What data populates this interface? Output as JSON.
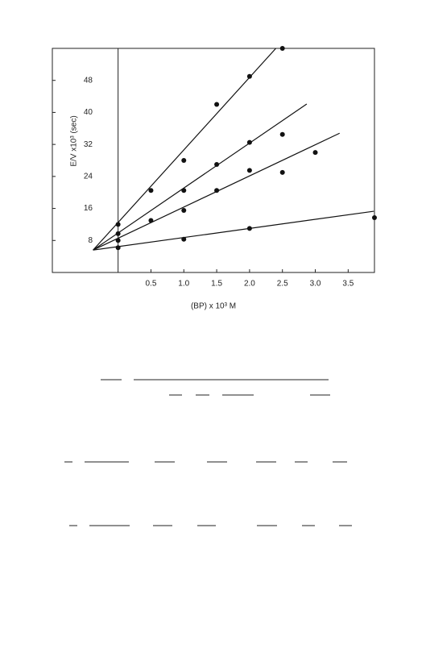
{
  "chart_data": {
    "type": "scatter",
    "xlabel": "(BP) x 10³ M",
    "ylabel": "E/V x10³ (sec)",
    "xlim": [
      -1,
      3.9
    ],
    "ylim": [
      0,
      56
    ],
    "xticks": [
      0.5,
      {
        "value": 1,
        "label": "1.0"
      },
      1.5,
      {
        "value": 2,
        "label": "2.0"
      },
      2.5,
      {
        "value": 3,
        "label": "3.0"
      },
      3.5
    ],
    "yticks": [
      8,
      16,
      24,
      32,
      40,
      48
    ],
    "color": "#111111",
    "series": [
      {
        "x": [
          0,
          0.5,
          1,
          1.5,
          2,
          2.5
        ],
        "values": [
          12,
          20.5,
          28,
          42,
          49,
          56
        ],
        "fit": {
          "x": [
            -0.38,
            2.4
          ],
          "y": [
            5.6,
            56
          ]
        }
      },
      {
        "x": [
          0,
          0.5,
          1,
          1.5,
          2,
          2.5
        ],
        "values": [
          9.7,
          13,
          20.5,
          27,
          32.5,
          34.5
        ],
        "fit": {
          "x": [
            -0.38,
            2.87
          ],
          "y": [
            5.6,
            42.1
          ]
        }
      },
      {
        "x": [
          0,
          1,
          1.5,
          2,
          2.5,
          3
        ],
        "values": [
          8,
          15.5,
          20.5,
          25.5,
          25,
          30
        ],
        "fit": {
          "x": [
            -0.38,
            3.37
          ],
          "y": [
            5.6,
            34.8
          ]
        }
      },
      {
        "x": [
          0,
          1,
          2,
          3.9
        ],
        "values": [
          6.2,
          8.3,
          11,
          13.7
        ],
        "fit": {
          "x": [
            -0.38,
            3.89
          ],
          "y": [
            5.6,
            15.3
          ]
        }
      }
    ]
  }
}
